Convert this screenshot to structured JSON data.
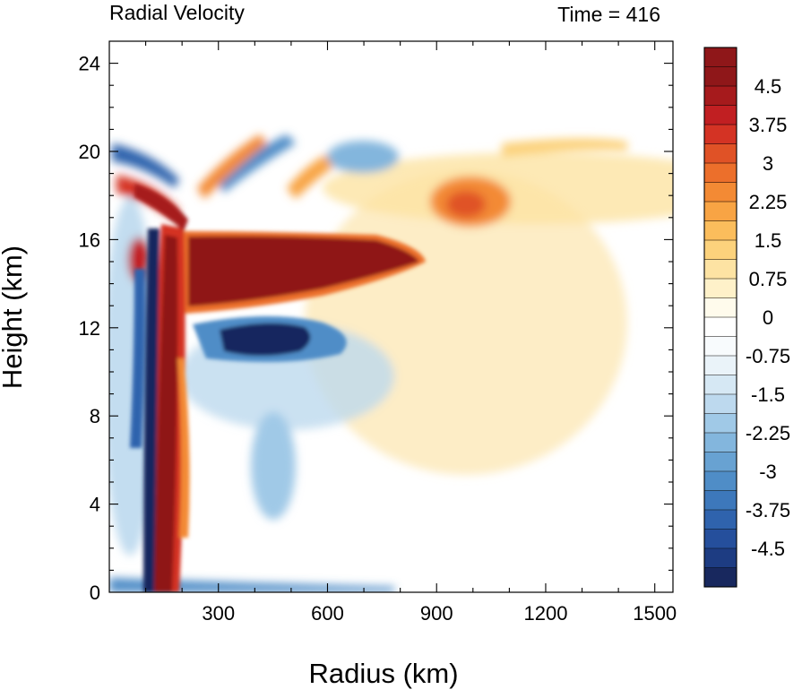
{
  "chart_data": {
    "type": "heatmap",
    "title_left": "Radial Velocity",
    "title_right": "Time = 416",
    "xlabel": "Radius (km)",
    "ylabel": "Height (km)",
    "xlim": [
      0,
      1550
    ],
    "ylim": [
      0,
      25
    ],
    "x_ticks": [
      {
        "value": 300,
        "label": "300"
      },
      {
        "value": 600,
        "label": "600"
      },
      {
        "value": 900,
        "label": "900"
      },
      {
        "value": 1200,
        "label": "1200"
      },
      {
        "value": 1500,
        "label": "1500"
      }
    ],
    "y_ticks": [
      {
        "value": 0,
        "label": "0"
      },
      {
        "value": 4,
        "label": "4"
      },
      {
        "value": 8,
        "label": "8"
      },
      {
        "value": 12,
        "label": "12"
      },
      {
        "value": 16,
        "label": "16"
      },
      {
        "value": 20,
        "label": "20"
      },
      {
        "value": 24,
        "label": "24"
      }
    ],
    "colorbar": {
      "min": -5.25,
      "max": 5.25,
      "step": 0.375,
      "labels": [
        {
          "value": 4.5,
          "label": "4.5"
        },
        {
          "value": 3.75,
          "label": "3.75"
        },
        {
          "value": 3,
          "label": "3"
        },
        {
          "value": 2.25,
          "label": "2.25"
        },
        {
          "value": 1.5,
          "label": "1.5"
        },
        {
          "value": 0.75,
          "label": "0.75"
        },
        {
          "value": 0,
          "label": "0"
        },
        {
          "value": -0.75,
          "label": "-0.75"
        },
        {
          "value": -1.5,
          "label": "-1.5"
        },
        {
          "value": -2.25,
          "label": "-2.25"
        },
        {
          "value": -3,
          "label": "-3"
        },
        {
          "value": -3.75,
          "label": "-3.75"
        },
        {
          "value": -4.5,
          "label": "-4.5"
        }
      ],
      "colors": [
        "#18285e",
        "#1d3c82",
        "#254f9c",
        "#2f63ad",
        "#3d78bb",
        "#4f8dc7",
        "#68a2d2",
        "#83b6dd",
        "#a0c9e7",
        "#bdd9ee",
        "#d6e8f4",
        "#eaf3f9",
        "#f8fbfd",
        "#ffffff",
        "#fffbec",
        "#fef1c9",
        "#fde3a3",
        "#fcd27c",
        "#fbbd5c",
        "#f8a444",
        "#f38a34",
        "#ec6f2b",
        "#e05226",
        "#d43324",
        "#c11f22",
        "#a61a1c",
        "#8f1719",
        "#8f1719"
      ]
    },
    "features": [
      {
        "kind": "outflow_jet",
        "sign": "positive",
        "x_range": [
          200,
          870
        ],
        "z_range": [
          12.8,
          16.2
        ],
        "value": 5.25
      },
      {
        "kind": "inflow_layer",
        "sign": "negative",
        "x_range": [
          300,
          650
        ],
        "z_range": [
          10.5,
          12.6
        ],
        "value": -5.0
      },
      {
        "kind": "eyewall_updraft_outflow",
        "sign": "positive",
        "x_range": [
          120,
          215
        ],
        "z_range": [
          0,
          19
        ],
        "value": 5.25
      },
      {
        "kind": "inner_core_inflow",
        "sign": "negative",
        "x_range": [
          100,
          170
        ],
        "z_range": [
          0,
          17
        ],
        "value": -5.25
      },
      {
        "kind": "upper_outflow_patch",
        "sign": "positive",
        "x_range": [
          880,
          1000
        ],
        "z_range": [
          16.5,
          18.5
        ],
        "value": 2.6
      },
      {
        "kind": "boundary_inflow",
        "sign": "negative",
        "x_range": [
          0,
          450
        ],
        "z_range": [
          0,
          1.5
        ],
        "value": -3.5
      }
    ]
  }
}
